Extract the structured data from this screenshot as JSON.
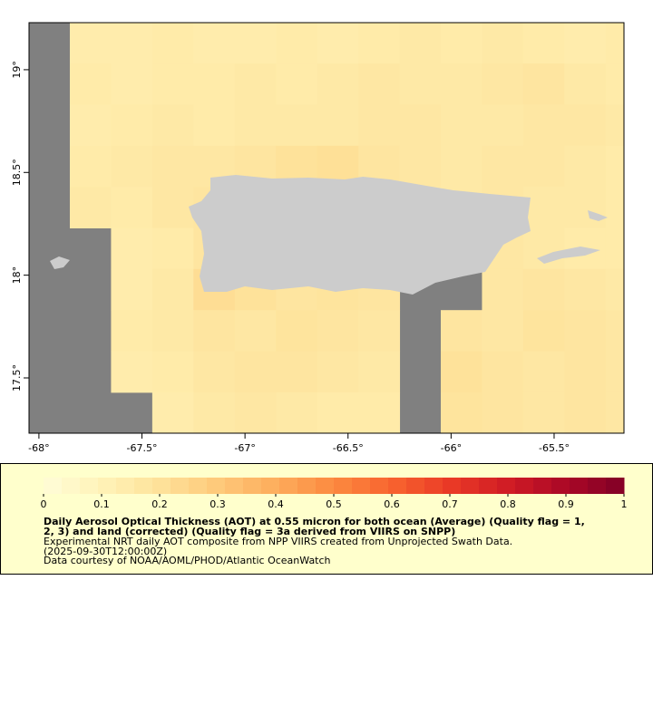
{
  "map": {
    "xlim": [
      -68.048,
      -65.161
    ],
    "ylim": [
      17.231,
      19.229
    ],
    "xticks": [
      {
        "value": -68,
        "label": "-68°"
      },
      {
        "value": -67.5,
        "label": "-67.5°"
      },
      {
        "value": -67,
        "label": "-67°"
      },
      {
        "value": -66.5,
        "label": "-66.5°"
      },
      {
        "value": -66,
        "label": "-66°"
      },
      {
        "value": -65.5,
        "label": "-65.5°"
      }
    ],
    "yticks": [
      {
        "value": 17.5,
        "label": "17.5°"
      },
      {
        "value": 18,
        "label": "18°"
      },
      {
        "value": 18.5,
        "label": "18.5°"
      },
      {
        "value": 19,
        "label": "19°"
      }
    ],
    "grid": {
      "lon": [
        -67.95,
        -67.75,
        -67.55,
        -67.35,
        -67.15,
        -66.95,
        -66.75,
        -66.55,
        -66.35,
        -66.15,
        -65.95,
        -65.75,
        -65.55,
        -65.35,
        -65.15
      ],
      "lat": [
        19.13,
        18.93,
        18.73,
        18.53,
        18.33,
        18.13,
        17.93,
        17.73,
        17.53,
        17.33
      ],
      "aot": [
        [
          null,
          0.14,
          0.14,
          0.15,
          0.14,
          0.14,
          0.15,
          0.14,
          0.15,
          0.16,
          0.15,
          0.16,
          0.15,
          0.14,
          0.15
        ],
        [
          null,
          0.15,
          0.14,
          0.15,
          0.15,
          0.16,
          0.15,
          0.16,
          0.17,
          0.16,
          0.16,
          0.17,
          0.18,
          0.16,
          0.15
        ],
        [
          null,
          0.14,
          0.15,
          0.16,
          0.15,
          0.16,
          0.16,
          0.16,
          0.17,
          0.17,
          0.16,
          0.16,
          0.17,
          0.17,
          0.16
        ],
        [
          null,
          0.15,
          0.16,
          0.17,
          0.17,
          0.18,
          0.2,
          0.21,
          0.18,
          0.17,
          0.16,
          0.17,
          0.17,
          0.16,
          0.15
        ],
        [
          null,
          0.16,
          0.15,
          0.17,
          0.18,
          0.18,
          0.17,
          0.16,
          0.16,
          0.16,
          0.16,
          0.17,
          0.16,
          0.16,
          0.15
        ],
        [
          null,
          null,
          0.14,
          0.15,
          0.18,
          0.18,
          0.17,
          0.16,
          0.16,
          0.16,
          0.17,
          0.17,
          0.16,
          0.15,
          0.15
        ],
        [
          null,
          null,
          0.14,
          0.16,
          0.22,
          0.2,
          0.18,
          0.19,
          0.18,
          null,
          null,
          0.17,
          0.18,
          0.17,
          0.16
        ],
        [
          null,
          null,
          0.15,
          0.16,
          0.18,
          0.17,
          0.19,
          0.18,
          0.17,
          null,
          0.18,
          0.17,
          0.19,
          0.18,
          0.17
        ],
        [
          null,
          null,
          0.14,
          0.15,
          0.17,
          0.18,
          0.18,
          0.17,
          0.16,
          null,
          0.2,
          0.18,
          0.17,
          0.18,
          0.17
        ],
        [
          null,
          null,
          null,
          0.14,
          0.16,
          0.17,
          0.16,
          0.15,
          0.15,
          null,
          0.19,
          0.18,
          0.17,
          0.18,
          0.17
        ]
      ]
    }
  },
  "colorbar": {
    "lim": [
      0,
      1
    ],
    "ticks": [
      0,
      0.1,
      0.2,
      0.3,
      0.4,
      0.5,
      0.6,
      0.7,
      0.8,
      0.9,
      1
    ],
    "colors": [
      "#fffdd8",
      "#fff3b8",
      "#fee29a",
      "#fec97a",
      "#fdad5c",
      "#fc8a40",
      "#f8642f",
      "#ea3a26",
      "#d01c25",
      "#ab0826",
      "#800026"
    ]
  },
  "legend": {
    "title": [
      "Daily Aerosol Optical Thickness (AOT) at 0.55 micron for both ocean (Average) (Quality flag = 1,",
      "2, 3) and land (corrected) (Quality flag = 3a derived from VIIRS on SNPP)"
    ],
    "lines": [
      "Experimental NRT daily AOT composite from NPP VIIRS created from Unprojected Swath Data.",
      "(2025-09-30T12:00:00Z)",
      "Data courtesy of NOAA/AOML/PHOD/Atlantic OceanWatch"
    ]
  }
}
